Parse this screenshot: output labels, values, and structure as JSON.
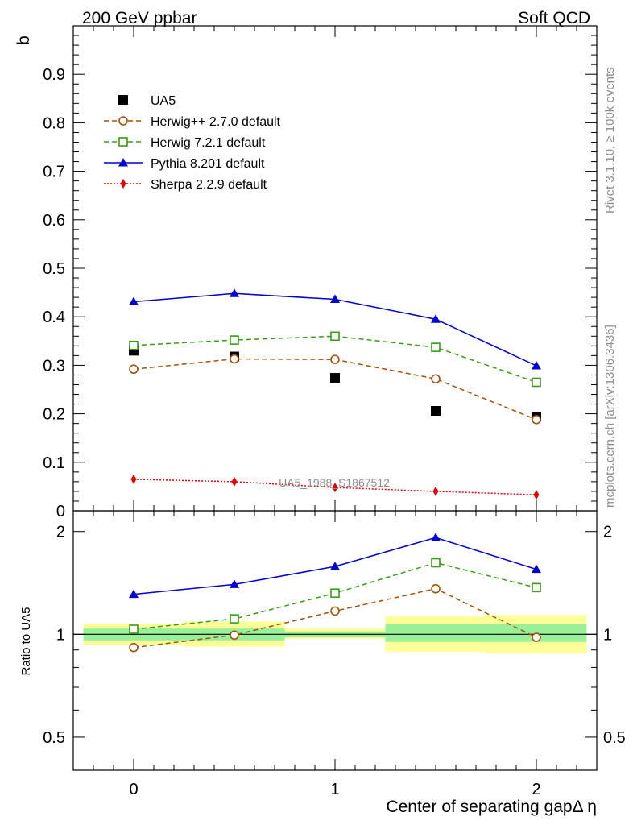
{
  "header": {
    "left": "200 GeV ppbar",
    "right": "Soft QCD"
  },
  "side_labels": {
    "top": "Rivet 3.1.10, ≥ 100k events",
    "bottom": "mcplots.cern.ch [arXiv:1306.3436]"
  },
  "reference_label": "UA5_1988_S1867512",
  "chart_data": [
    {
      "type": "scatter",
      "ylabel": "b",
      "xlim": [
        -0.3,
        2.3
      ],
      "ylim": [
        0,
        1.0
      ],
      "x": [
        0,
        0.5,
        1,
        1.5,
        2
      ],
      "yticks": [
        0,
        0.1,
        0.2,
        0.3,
        0.4,
        0.5,
        0.6,
        0.7,
        0.8,
        0.9
      ],
      "ytick_labels": [
        "0",
        "0.1",
        "0.2",
        "0.3",
        "0.4",
        "0.5",
        "0.6",
        "0.7",
        "0.8",
        "0.9"
      ],
      "legend_position": "top-left",
      "series": [
        {
          "name": "UA5",
          "style": "data",
          "color": "#000000",
          "marker": "square-filled",
          "values": [
            0.33,
            0.318,
            0.274,
            0.206,
            0.194
          ]
        },
        {
          "name": "Herwig++ 2.7.0 default",
          "style": "line",
          "color": "#a0520a",
          "dash": "6,4",
          "marker": "circle-open",
          "values": [
            0.292,
            0.313,
            0.312,
            0.272,
            0.188
          ]
        },
        {
          "name": "Herwig 7.2.1 default",
          "style": "line",
          "color": "#3a9a1a",
          "dash": "6,4",
          "marker": "square-open",
          "values": [
            0.341,
            0.352,
            0.36,
            0.337,
            0.265
          ]
        },
        {
          "name": "Pythia 8.201 default",
          "style": "line",
          "color": "#0000d0",
          "dash": "",
          "marker": "triangle-filled",
          "values": [
            0.431,
            0.448,
            0.436,
            0.395,
            0.299
          ]
        },
        {
          "name": "Sherpa 2.2.9 default",
          "style": "line",
          "color": "#e00000",
          "dash": "2,2",
          "marker": "diamond-filled",
          "values": [
            0.065,
            0.06,
            0.048,
            0.04,
            0.033
          ]
        }
      ]
    },
    {
      "type": "line",
      "ylabel": "Ratio to UA5",
      "xlabel": "Center of separating gapΔ η",
      "xlim": [
        -0.3,
        2.3
      ],
      "ylim": [
        0.4,
        2.3
      ],
      "scale": "log",
      "x": [
        0,
        0.5,
        1,
        1.5,
        2
      ],
      "xticks": [
        0,
        1,
        2
      ],
      "xtick_labels": [
        "0",
        "1",
        "2"
      ],
      "yticks": [
        0.5,
        1,
        2
      ],
      "ytick_labels": [
        "0.5",
        "1",
        "2"
      ],
      "bands": [
        {
          "x_range": [
            -0.25,
            0.25
          ],
          "inner": [
            0.96,
            1.04
          ],
          "outer": [
            0.93,
            1.07
          ]
        },
        {
          "x_range": [
            0.25,
            0.75
          ],
          "inner": [
            0.96,
            1.04
          ],
          "outer": [
            0.92,
            1.09
          ]
        },
        {
          "x_range": [
            0.75,
            1.25
          ],
          "inner": [
            0.98,
            1.02
          ],
          "outer": [
            0.97,
            1.04
          ]
        },
        {
          "x_range": [
            1.25,
            1.75
          ],
          "inner": [
            0.95,
            1.07
          ],
          "outer": [
            0.89,
            1.13
          ]
        },
        {
          "x_range": [
            1.75,
            2.25
          ],
          "inner": [
            0.95,
            1.07
          ],
          "outer": [
            0.88,
            1.14
          ]
        }
      ],
      "band_colors": {
        "inner": "#99f099",
        "outer": "#ffff99"
      },
      "series": [
        {
          "name": "Herwig++ 2.7.0 default",
          "color": "#a0520a",
          "dash": "6,4",
          "marker": "circle-open",
          "values": [
            0.915,
            0.995,
            1.17,
            1.36,
            0.98
          ]
        },
        {
          "name": "Herwig 7.2.1 default",
          "color": "#3a9a1a",
          "dash": "6,4",
          "marker": "square-open",
          "values": [
            1.035,
            1.11,
            1.32,
            1.62,
            1.37
          ]
        },
        {
          "name": "Pythia 8.201 default",
          "color": "#0000d0",
          "dash": "",
          "marker": "triangle-filled",
          "values": [
            1.31,
            1.4,
            1.58,
            1.92,
            1.55
          ]
        }
      ]
    }
  ]
}
